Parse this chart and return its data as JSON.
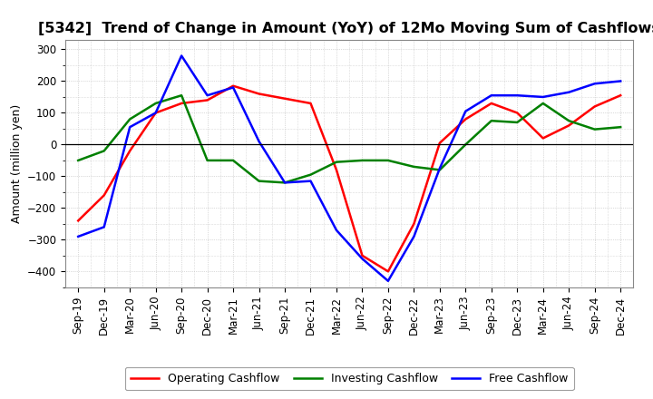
{
  "title": "[5342]  Trend of Change in Amount (YoY) of 12Mo Moving Sum of Cashflows",
  "ylabel": "Amount (million yen)",
  "x_labels": [
    "Sep-19",
    "Dec-19",
    "Mar-20",
    "Jun-20",
    "Sep-20",
    "Dec-20",
    "Mar-21",
    "Jun-21",
    "Sep-21",
    "Dec-21",
    "Mar-22",
    "Jun-22",
    "Sep-22",
    "Dec-22",
    "Mar-23",
    "Jun-23",
    "Sep-23",
    "Dec-23",
    "Mar-24",
    "Jun-24",
    "Sep-24",
    "Dec-24"
  ],
  "operating": [
    -240,
    -160,
    -20,
    100,
    130,
    140,
    185,
    160,
    145,
    130,
    -80,
    -350,
    -400,
    -250,
    5,
    80,
    130,
    100,
    20,
    60,
    120,
    155
  ],
  "investing": [
    -50,
    -20,
    80,
    130,
    155,
    -50,
    -50,
    -115,
    -120,
    -95,
    -55,
    -50,
    -50,
    -70,
    -80,
    0,
    75,
    70,
    130,
    75,
    48,
    55
  ],
  "free": [
    -290,
    -260,
    55,
    100,
    280,
    155,
    180,
    10,
    -120,
    -115,
    -270,
    -360,
    -430,
    -290,
    -75,
    105,
    155,
    155,
    150,
    165,
    192,
    200
  ],
  "ylim": [
    -450,
    330
  ],
  "yticks": [
    -400,
    -300,
    -200,
    -100,
    0,
    100,
    200,
    300
  ],
  "line_colors": {
    "operating": "#ff0000",
    "investing": "#008000",
    "free": "#0000ff"
  },
  "legend_labels": [
    "Operating Cashflow",
    "Investing Cashflow",
    "Free Cashflow"
  ],
  "background_color": "#ffffff",
  "grid_color": "#bbbbbb",
  "title_fontsize": 11.5,
  "axis_fontsize": 9,
  "tick_fontsize": 8.5
}
